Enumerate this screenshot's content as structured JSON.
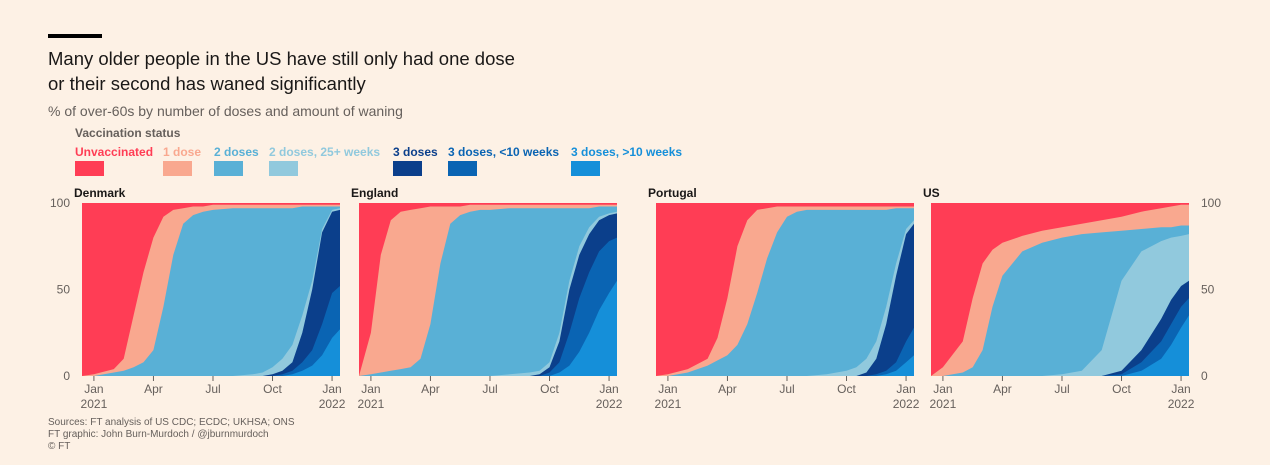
{
  "title_lines": [
    "Many older people in the US have still only had one dose",
    "or their second has waned significantly"
  ],
  "subtitle": "% of over-60s by number of doses and amount of waning",
  "legend_title": "Vaccination status",
  "legend": [
    {
      "label": "Unvaccinated",
      "color": "#ff3d55"
    },
    {
      "label": "1 dose",
      "color": "#f9a88f"
    },
    {
      "label": "2 doses",
      "color": "#59b0d6"
    },
    {
      "label": "2 doses, 25+ weeks",
      "color": "#91c9dd"
    },
    {
      "label": "3 doses",
      "color": "#0b3f8b"
    },
    {
      "label": "3 doses, <10 weeks",
      "color": "#0a64b3"
    },
    {
      "label": "3 doses, >10 weeks",
      "color": "#158fd9"
    }
  ],
  "sources": [
    "Sources: FT analysis of US CDC; ECDC; UKHSA; ONS",
    "FT graphic: John Burn-Murdoch / @jburnmurdoch",
    "© FT"
  ],
  "chart_data": {
    "type": "area",
    "stacked": true,
    "x_unit": "month (0 = Jan 2021)",
    "x_range": [
      -0.6,
      12.4
    ],
    "y_range": [
      0,
      100
    ],
    "y_ticks": [
      0,
      50,
      100
    ],
    "x_ticks": [
      {
        "x": 0,
        "label": "Jan",
        "sub": "2021"
      },
      {
        "x": 3,
        "label": "Apr",
        "sub": ""
      },
      {
        "x": 6,
        "label": "Jul",
        "sub": ""
      },
      {
        "x": 9,
        "label": "Oct",
        "sub": ""
      },
      {
        "x": 12,
        "label": "Jan",
        "sub": "2022"
      }
    ],
    "panels": [
      {
        "name": "Denmark",
        "boundaries": {
          "x": [
            -0.6,
            0,
            1,
            1.5,
            2,
            2.5,
            3,
            3.5,
            4,
            4.5,
            5,
            5.5,
            6,
            7,
            8,
            8.5,
            9,
            9.5,
            10,
            10.5,
            11,
            11.5,
            12,
            12.4
          ],
          "b1": [
            0,
            1,
            4,
            10,
            35,
            60,
            80,
            92,
            96,
            97,
            98,
            98,
            99,
            99,
            99,
            99,
            99,
            99,
            99,
            99,
            99,
            99,
            99,
            99
          ],
          "b2": [
            0,
            0,
            2,
            3,
            5,
            8,
            15,
            40,
            70,
            88,
            93,
            95,
            96,
            97,
            97,
            97,
            97,
            97,
            97,
            98,
            98,
            98,
            98,
            98
          ],
          "b3": [
            0,
            0,
            0,
            0,
            0,
            0,
            0,
            0,
            0,
            0,
            0,
            0,
            0,
            0,
            1,
            2,
            5,
            10,
            18,
            35,
            55,
            85,
            96,
            97
          ],
          "b4": [
            0,
            0,
            0,
            0,
            0,
            0,
            0,
            0,
            0,
            0,
            0,
            0,
            0,
            0,
            0,
            0,
            1,
            3,
            8,
            25,
            50,
            83,
            95,
            96
          ],
          "b5": [
            0,
            0,
            0,
            0,
            0,
            0,
            0,
            0,
            0,
            0,
            0,
            0,
            0,
            0,
            0,
            0,
            0,
            1,
            3,
            8,
            15,
            30,
            48,
            52
          ],
          "b6": [
            0,
            0,
            0,
            0,
            0,
            0,
            0,
            0,
            0,
            0,
            0,
            0,
            0,
            0,
            0,
            0,
            0,
            0,
            1,
            3,
            6,
            12,
            22,
            27
          ]
        }
      },
      {
        "name": "England",
        "boundaries": {
          "x": [
            -0.6,
            0,
            0.5,
            1,
            1.5,
            2,
            2.5,
            3,
            3.5,
            4,
            4.5,
            5,
            5.5,
            6,
            7,
            8,
            8.5,
            9,
            9.5,
            10,
            10.5,
            11,
            11.5,
            12,
            12.4
          ],
          "b1": [
            0,
            25,
            70,
            90,
            95,
            96,
            97,
            98,
            98,
            98,
            98,
            99,
            99,
            99,
            99,
            99,
            99,
            99,
            99,
            99,
            99,
            99,
            99,
            99,
            99
          ],
          "b2": [
            0,
            1,
            2,
            3,
            4,
            5,
            10,
            30,
            65,
            88,
            93,
            95,
            96,
            96,
            97,
            97,
            97,
            97,
            97,
            97,
            97,
            97,
            98,
            98,
            98
          ],
          "b3": [
            0,
            0,
            0,
            0,
            0,
            0,
            0,
            0,
            0,
            0,
            0,
            0,
            0,
            0,
            1,
            2,
            3,
            8,
            25,
            55,
            75,
            86,
            92,
            94,
            95
          ],
          "b4": [
            0,
            0,
            0,
            0,
            0,
            0,
            0,
            0,
            0,
            0,
            0,
            0,
            0,
            0,
            0,
            0,
            1,
            5,
            20,
            50,
            70,
            82,
            90,
            93,
            94
          ],
          "b5": [
            0,
            0,
            0,
            0,
            0,
            0,
            0,
            0,
            0,
            0,
            0,
            0,
            0,
            0,
            0,
            0,
            0,
            2,
            8,
            25,
            45,
            60,
            72,
            78,
            80
          ],
          "b6": [
            0,
            0,
            0,
            0,
            0,
            0,
            0,
            0,
            0,
            0,
            0,
            0,
            0,
            0,
            0,
            0,
            0,
            0,
            2,
            6,
            14,
            25,
            38,
            48,
            55
          ]
        }
      },
      {
        "name": "Portugal",
        "boundaries": {
          "x": [
            -0.6,
            0,
            1,
            2,
            2.5,
            3,
            3.5,
            4,
            4.5,
            5,
            5.5,
            6,
            6.5,
            7,
            8,
            8.5,
            9,
            9.5,
            10,
            10.5,
            11,
            11.5,
            12,
            12.4
          ],
          "b1": [
            0,
            1,
            4,
            10,
            22,
            45,
            75,
            90,
            96,
            97,
            98,
            98,
            98,
            98,
            98,
            98,
            98,
            98,
            98,
            98,
            98,
            98,
            98,
            98
          ],
          "b2": [
            0,
            0,
            2,
            6,
            9,
            12,
            18,
            30,
            48,
            68,
            83,
            92,
            95,
            96,
            96,
            96,
            96,
            96,
            96,
            96,
            96,
            97,
            97,
            97
          ],
          "b3": [
            0,
            0,
            0,
            0,
            0,
            0,
            0,
            0,
            0,
            0,
            0,
            0,
            0,
            0,
            1,
            2,
            3,
            5,
            10,
            20,
            40,
            65,
            85,
            90
          ],
          "b4": [
            0,
            0,
            0,
            0,
            0,
            0,
            0,
            0,
            0,
            0,
            0,
            0,
            0,
            0,
            0,
            0,
            0,
            0,
            2,
            10,
            30,
            58,
            82,
            88
          ],
          "b5": [
            0,
            0,
            0,
            0,
            0,
            0,
            0,
            0,
            0,
            0,
            0,
            0,
            0,
            0,
            0,
            0,
            0,
            0,
            0,
            1,
            3,
            8,
            20,
            28
          ],
          "b6": [
            0,
            0,
            0,
            0,
            0,
            0,
            0,
            0,
            0,
            0,
            0,
            0,
            0,
            0,
            0,
            0,
            0,
            0,
            0,
            0,
            1,
            3,
            8,
            12
          ]
        }
      },
      {
        "name": "US",
        "boundaries": {
          "x": [
            -0.6,
            0,
            1,
            1.5,
            2,
            2.5,
            3,
            4,
            5,
            6,
            7,
            8,
            9,
            10,
            11,
            11.5,
            12,
            12.4
          ],
          "b1": [
            0,
            5,
            20,
            45,
            65,
            73,
            77,
            81,
            84,
            86,
            88,
            90,
            92,
            95,
            97,
            98,
            99,
            99
          ],
          "b2": [
            0,
            0,
            2,
            5,
            15,
            40,
            58,
            72,
            77,
            80,
            82,
            83,
            84,
            85,
            86,
            86,
            87,
            87
          ],
          "b3": [
            0,
            0,
            0,
            0,
            0,
            0,
            0,
            0,
            0,
            1,
            3,
            15,
            55,
            72,
            78,
            80,
            81,
            82
          ],
          "b4": [
            0,
            0,
            0,
            0,
            0,
            0,
            0,
            0,
            0,
            0,
            0,
            0,
            3,
            15,
            33,
            44,
            52,
            55
          ],
          "b5": [
            0,
            0,
            0,
            0,
            0,
            0,
            0,
            0,
            0,
            0,
            0,
            0,
            1,
            8,
            20,
            30,
            40,
            45
          ],
          "b6": [
            0,
            0,
            0,
            0,
            0,
            0,
            0,
            0,
            0,
            0,
            0,
            0,
            0,
            3,
            10,
            18,
            28,
            35
          ]
        }
      }
    ]
  }
}
